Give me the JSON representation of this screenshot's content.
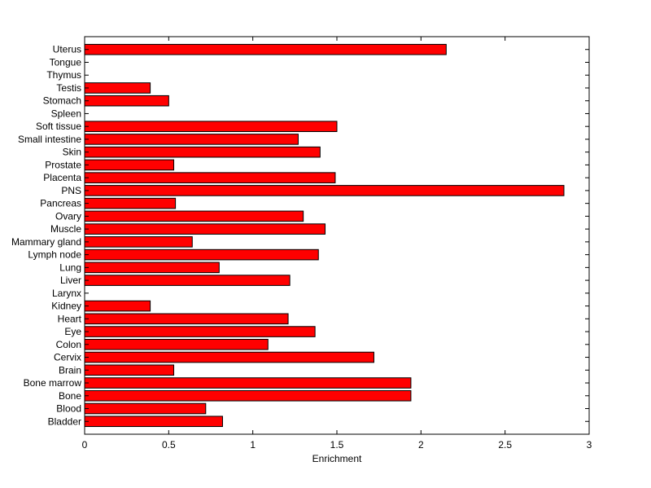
{
  "chart_data": {
    "type": "bar",
    "orientation": "horizontal",
    "title": "",
    "xlabel": "Enrichment",
    "ylabel": "",
    "xlim": [
      0,
      3
    ],
    "xticks": [
      "0",
      "0.5",
      "1",
      "1.5",
      "2",
      "2.5",
      "3"
    ],
    "bar_color": "#ff0000",
    "bar_edge_color": "#000000",
    "grid": false,
    "legend": "none",
    "categories": [
      "Bladder",
      "Blood",
      "Bone",
      "Bone marrow",
      "Brain",
      "Cervix",
      "Colon",
      "Eye",
      "Heart",
      "Kidney",
      "Larynx",
      "Liver",
      "Lung",
      "Lymph node",
      "Mammary gland",
      "Muscle",
      "Ovary",
      "Pancreas",
      "PNS",
      "Placenta",
      "Prostate",
      "Skin",
      "Small intestine",
      "Soft tissue",
      "Spleen",
      "Stomach",
      "Testis",
      "Thymus",
      "Tongue",
      "Uterus"
    ],
    "values": [
      0.82,
      0.72,
      1.94,
      1.94,
      0.53,
      1.72,
      1.09,
      1.37,
      1.21,
      0.39,
      0,
      1.22,
      0.8,
      1.39,
      0.64,
      1.43,
      1.3,
      0.54,
      2.85,
      1.49,
      0.53,
      1.4,
      1.27,
      1.5,
      0,
      0.5,
      0.39,
      0,
      0,
      2.15
    ]
  }
}
